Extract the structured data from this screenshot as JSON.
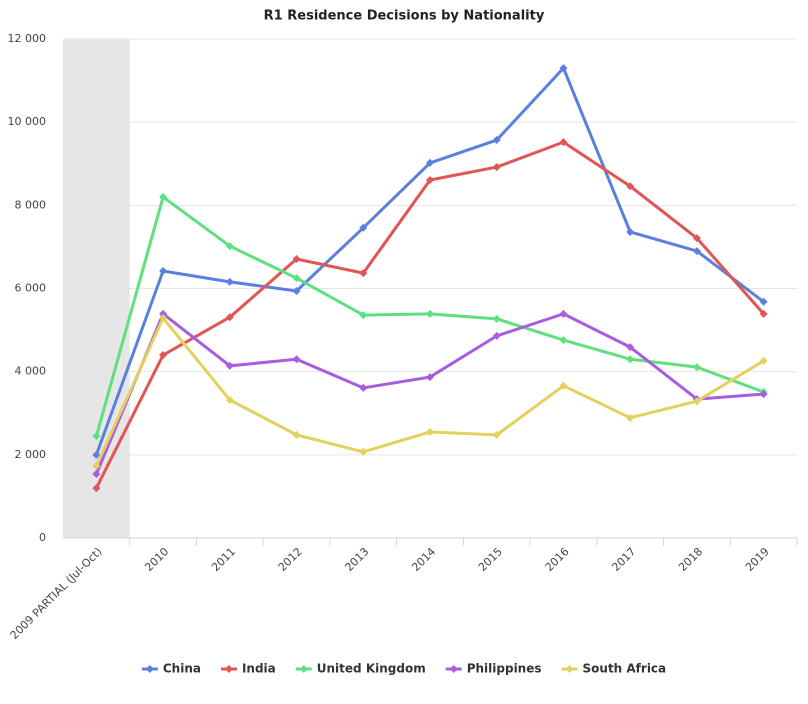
{
  "chart_data": {
    "type": "line",
    "title": "R1 Residence Decisions by Nationality",
    "categories": [
      "2009 PARTIAL (Jul-Oct)",
      "2010",
      "2011",
      "2012",
      "2013",
      "2014",
      "2015",
      "2016",
      "2017",
      "2018",
      "2019"
    ],
    "series": [
      {
        "name": "China",
        "color": "#5b7fe0",
        "values": [
          2000,
          6420,
          6160,
          5940,
          7460,
          9020,
          9570,
          11300,
          7360,
          6900,
          5680
        ]
      },
      {
        "name": "India",
        "color": "#e05555",
        "values": [
          1200,
          4400,
          5310,
          6710,
          6370,
          8610,
          8920,
          9520,
          8460,
          7210,
          5390
        ]
      },
      {
        "name": "United Kingdom",
        "color": "#5fe07f",
        "values": [
          2450,
          8200,
          7020,
          6250,
          5360,
          5390,
          5270,
          4760,
          4300,
          4110,
          3510
        ]
      },
      {
        "name": "Philippines",
        "color": "#a85ce0",
        "values": [
          1540,
          5390,
          4140,
          4300,
          3610,
          3870,
          4860,
          5390,
          4590,
          3340,
          3460
        ]
      },
      {
        "name": "South Africa",
        "color": "#e2d15d",
        "values": [
          1730,
          5290,
          3320,
          2480,
          2070,
          2550,
          2480,
          3660,
          2890,
          3290,
          4260
        ]
      }
    ],
    "ylim": [
      0,
      12000
    ],
    "yticks": [
      0,
      {
        "value": 2000,
        "label": "2 000"
      },
      {
        "value": 4000,
        "label": "4 000"
      },
      {
        "value": 6000,
        "label": "6 000"
      },
      {
        "value": 8000,
        "label": "8 000"
      },
      {
        "value": 10000,
        "label": "10 000"
      },
      {
        "value": 12000,
        "label": "12 000"
      }
    ],
    "grid": true,
    "legend": "bottom"
  }
}
